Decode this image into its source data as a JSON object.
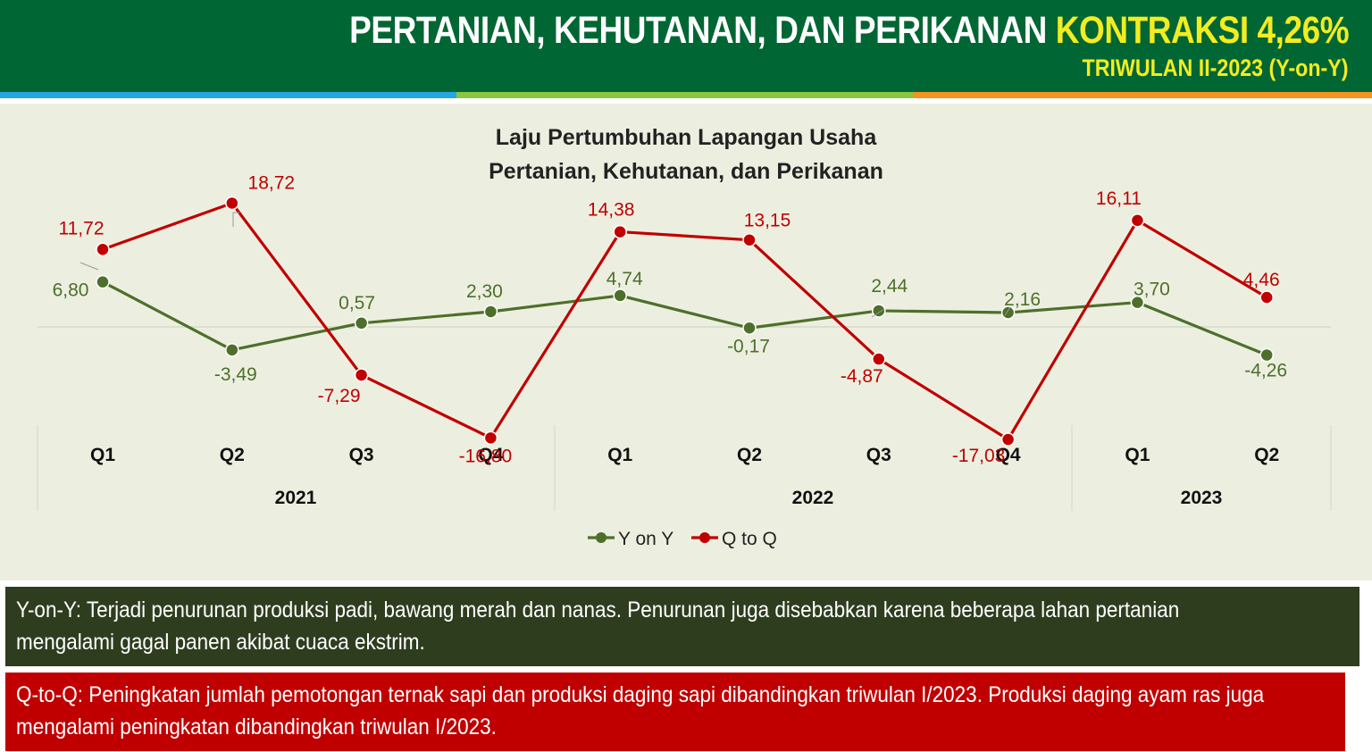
{
  "header": {
    "title_main": "PERTANIAN, KEHUTANAN, DAN PERIKANAN ",
    "title_highlight": "KONTRAKSI 4,26%",
    "subtitle": "TRIWULAN II-2023 (Y-on-Y)",
    "bg_color": "#006633",
    "highlight_color": "#f2ec22"
  },
  "chart_data": {
    "type": "line",
    "title": [
      "Laju Pertumbuhan Lapangan Usaha",
      "Pertanian, Kehutanan, dan Perikanan"
    ],
    "categories": [
      "Q1",
      "Q2",
      "Q3",
      "Q4",
      "Q1",
      "Q2",
      "Q3",
      "Q4",
      "Q1",
      "Q2"
    ],
    "years": [
      {
        "label": "2021",
        "span": [
          0,
          3
        ]
      },
      {
        "label": "2022",
        "span": [
          4,
          7
        ]
      },
      {
        "label": "2023",
        "span": [
          8,
          9
        ]
      }
    ],
    "series": [
      {
        "name": "Y on Y",
        "color": "#4e6f2b",
        "values": [
          6.8,
          -3.49,
          0.57,
          2.3,
          4.74,
          -0.17,
          2.44,
          2.16,
          3.7,
          -4.26
        ],
        "labels": [
          "6,80",
          "-3,49",
          "0,57",
          "2,30",
          "4,74",
          "-0,17",
          "2,44",
          "2,16",
          "3,70",
          "-4,26"
        ]
      },
      {
        "name": "Q to Q",
        "color": "#c00000",
        "values": [
          11.72,
          18.72,
          -7.29,
          -16.8,
          14.38,
          13.15,
          -4.87,
          -17.03,
          16.11,
          4.46
        ],
        "labels": [
          "11,72",
          "18,72",
          "-7,29",
          "-16,80",
          "14,38",
          "13,15",
          "-4,87",
          "-17,03",
          "16,11",
          "4,46"
        ]
      }
    ],
    "ylim": [
      -20,
      25
    ],
    "grid": false,
    "legend": "bottom"
  },
  "notes": {
    "yoy_lines": [
      "Y-on-Y: Terjadi penurunan produksi padi, bawang merah dan nanas. Penurunan juga disebabkan karena beberapa lahan pertanian",
      "mengalami gagal panen akibat cuaca ekstrim."
    ],
    "qtq_lines": [
      "Q-to-Q: Peningkatan jumlah pemotongan ternak sapi dan produksi daging sapi dibandingkan triwulan I/2023. Produksi daging ayam ras juga",
      "mengalami peningkatan dibandingkan triwulan I/2023."
    ]
  }
}
